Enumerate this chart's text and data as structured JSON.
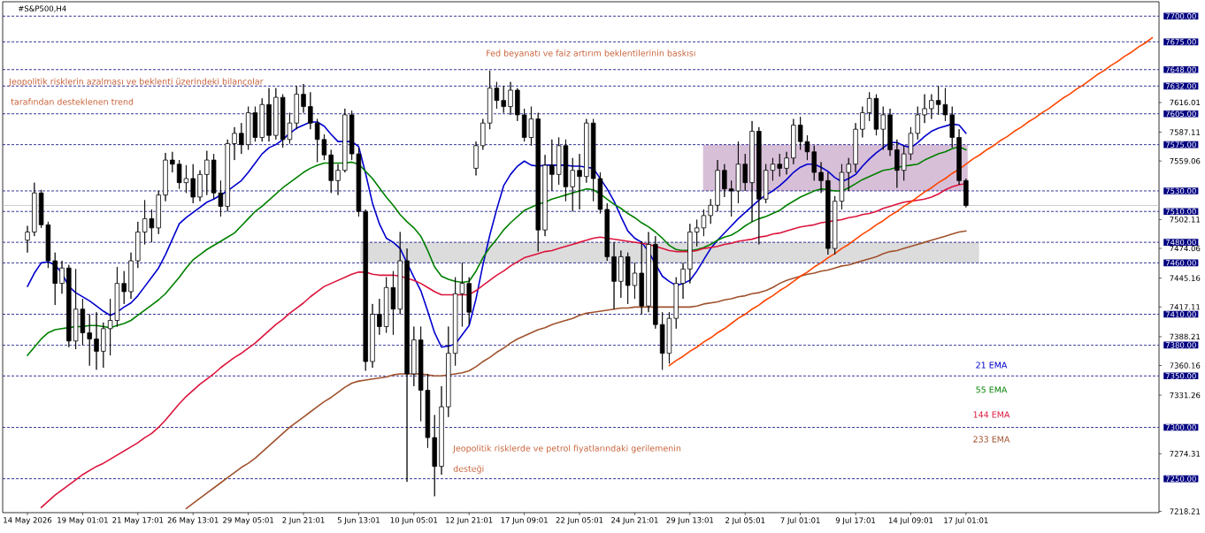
{
  "chart_data": {
    "type": "candlestick",
    "title": "#S&P500,H4",
    "categories": [
      "14 May 2026",
      null,
      null,
      null,
      null,
      null,
      null,
      null,
      "19 May 01:01",
      null,
      null,
      null,
      null,
      null,
      null,
      null,
      "21 May 17:01",
      null,
      null,
      null,
      null,
      null,
      null,
      null,
      "26 May 13:01",
      null,
      null,
      null,
      null,
      null,
      null,
      null,
      "29 May 05:01",
      null,
      null,
      null,
      null,
      null,
      null,
      null,
      "2 Jun 21:01",
      null,
      null,
      null,
      null,
      null,
      null,
      null,
      "5 Jun 13:01",
      null,
      null,
      null,
      null,
      null,
      null,
      null,
      "10 Jun 05:01",
      null,
      null,
      null,
      null,
      null,
      null,
      null,
      "12 Jun 21:01",
      null,
      null,
      null,
      null,
      null,
      null,
      null,
      "17 Jun 09:01",
      null,
      null,
      null,
      null,
      null,
      null,
      null,
      "22 Jun 05:01",
      null,
      null,
      null,
      null,
      null,
      null,
      null,
      "24 Jun 21:01",
      null,
      null,
      null,
      null,
      null,
      null,
      null,
      "29 Jun 13:01",
      null,
      null,
      null,
      null,
      null,
      null,
      null,
      "2 Jul 05:01",
      null,
      null,
      null,
      null,
      null,
      null,
      null,
      "7 Jul 01:01",
      null,
      null,
      null,
      null,
      null,
      null,
      null,
      "9 Jul 17:01",
      null,
      null,
      null,
      null,
      null,
      null,
      null,
      "14 Jul 09:01",
      null,
      null,
      null,
      null,
      null,
      null,
      null,
      "17 Jul 01:01",
      null,
      null,
      null,
      null,
      null,
      null,
      null,
      null,
      null,
      null,
      null,
      null,
      null,
      null,
      null,
      null,
      null,
      null,
      null,
      null,
      null,
      null,
      null,
      null,
      null,
      null,
      null
    ],
    "ohlc": [
      [
        7482,
        7496,
        7470,
        7490
      ],
      [
        7490,
        7538,
        7486,
        7528
      ],
      [
        7528,
        7531,
        7494,
        7497
      ],
      [
        7497,
        7500,
        7455,
        7462
      ],
      [
        7462,
        7470,
        7419,
        7440
      ],
      [
        7440,
        7462,
        7430,
        7455
      ],
      [
        7455,
        7458,
        7378,
        7384
      ],
      [
        7384,
        7454,
        7376,
        7415
      ],
      [
        7415,
        7425,
        7380,
        7392
      ],
      [
        7392,
        7410,
        7360,
        7386
      ],
      [
        7386,
        7412,
        7356,
        7374
      ],
      [
        7374,
        7402,
        7358,
        7396
      ],
      [
        7396,
        7425,
        7370,
        7404
      ],
      [
        7404,
        7456,
        7398,
        7440
      ],
      [
        7440,
        7452,
        7420,
        7432
      ],
      [
        7432,
        7470,
        7425,
        7462
      ],
      [
        7462,
        7500,
        7455,
        7490
      ],
      [
        7490,
        7521,
        7478,
        7503
      ],
      [
        7503,
        7512,
        7480,
        7494
      ],
      [
        7494,
        7530,
        7488,
        7526
      ],
      [
        7526,
        7567,
        7520,
        7560
      ],
      [
        7560,
        7568,
        7548,
        7556
      ],
      [
        7556,
        7560,
        7532,
        7538
      ],
      [
        7538,
        7555,
        7528,
        7542
      ],
      [
        7542,
        7556,
        7518,
        7524
      ],
      [
        7524,
        7550,
        7520,
        7546
      ],
      [
        7546,
        7569,
        7526,
        7560
      ],
      [
        7560,
        7566,
        7522,
        7528
      ],
      [
        7528,
        7540,
        7505,
        7515
      ],
      [
        7515,
        7580,
        7510,
        7576
      ],
      [
        7576,
        7592,
        7560,
        7586
      ],
      [
        7586,
        7596,
        7566,
        7575
      ],
      [
        7575,
        7612,
        7570,
        7606
      ],
      [
        7606,
        7612,
        7578,
        7582
      ],
      [
        7582,
        7620,
        7578,
        7614
      ],
      [
        7614,
        7630,
        7578,
        7584
      ],
      [
        7584,
        7630,
        7580,
        7621
      ],
      [
        7621,
        7624,
        7572,
        7580
      ],
      [
        7580,
        7606,
        7576,
        7596
      ],
      [
        7596,
        7632,
        7590,
        7624
      ],
      [
        7624,
        7634,
        7606,
        7612
      ],
      [
        7612,
        7626,
        7590,
        7596
      ],
      [
        7596,
        7600,
        7558,
        7580
      ],
      [
        7580,
        7585,
        7560,
        7565
      ],
      [
        7565,
        7570,
        7528,
        7540
      ],
      [
        7540,
        7556,
        7526,
        7550
      ],
      [
        7550,
        7610,
        7548,
        7604
      ],
      [
        7604,
        7608,
        7560,
        7566
      ],
      [
        7566,
        7572,
        7505,
        7510
      ],
      [
        7510,
        7512,
        7355,
        7364
      ],
      [
        7364,
        7420,
        7358,
        7410
      ],
      [
        7410,
        7425,
        7390,
        7398
      ],
      [
        7398,
        7446,
        7392,
        7436
      ],
      [
        7436,
        7452,
        7390,
        7415
      ],
      [
        7415,
        7490,
        7410,
        7462
      ],
      [
        7462,
        7474,
        7247,
        7352
      ],
      [
        7352,
        7398,
        7340,
        7385
      ],
      [
        7385,
        7398,
        7306,
        7336
      ],
      [
        7336,
        7352,
        7280,
        7290
      ],
      [
        7290,
        7312,
        7233,
        7262
      ],
      [
        7262,
        7340,
        7254,
        7320
      ],
      [
        7320,
        7398,
        7310,
        7372
      ],
      [
        7372,
        7446,
        7360,
        7430
      ],
      [
        7430,
        7460,
        7398,
        7440
      ],
      [
        7440,
        7446,
        7400,
        7412
      ],
      [
        7552,
        7578,
        7545,
        7574
      ],
      [
        7574,
        7600,
        7570,
        7596
      ],
      [
        7596,
        7647,
        7590,
        7630
      ],
      [
        7630,
        7636,
        7610,
        7618
      ],
      [
        7618,
        7632,
        7606,
        7612
      ],
      [
        7612,
        7636,
        7604,
        7628
      ],
      [
        7628,
        7630,
        7598,
        7604
      ],
      [
        7604,
        7610,
        7578,
        7582
      ],
      [
        7582,
        7612,
        7574,
        7600
      ],
      [
        7600,
        7606,
        7471,
        7492
      ],
      [
        7492,
        7565,
        7486,
        7555
      ],
      [
        7555,
        7580,
        7530,
        7546
      ],
      [
        7546,
        7582,
        7536,
        7574
      ],
      [
        7574,
        7580,
        7520,
        7534
      ],
      [
        7534,
        7562,
        7510,
        7550
      ],
      [
        7550,
        7566,
        7512,
        7544
      ],
      [
        7544,
        7600,
        7538,
        7596
      ],
      [
        7596,
        7600,
        7520,
        7542
      ],
      [
        7542,
        7548,
        7508,
        7512
      ],
      [
        7512,
        7518,
        7462,
        7466
      ],
      [
        7466,
        7480,
        7415,
        7442
      ],
      [
        7442,
        7472,
        7426,
        7466
      ],
      [
        7466,
        7470,
        7420,
        7438
      ],
      [
        7438,
        7460,
        7425,
        7450
      ],
      [
        7450,
        7481,
        7410,
        7418
      ],
      [
        7418,
        7490,
        7412,
        7478
      ],
      [
        7478,
        7486,
        7396,
        7400
      ],
      [
        7400,
        7412,
        7356,
        7372
      ],
      [
        7372,
        7412,
        7362,
        7406
      ],
      [
        7406,
        7446,
        7396,
        7440
      ],
      [
        7440,
        7460,
        7425,
        7454
      ],
      [
        7454,
        7498,
        7440,
        7490
      ],
      [
        7490,
        7502,
        7476,
        7494
      ],
      [
        7494,
        7512,
        7486,
        7506
      ],
      [
        7506,
        7522,
        7498,
        7516
      ],
      [
        7516,
        7560,
        7510,
        7550
      ],
      [
        7550,
        7556,
        7524,
        7532
      ],
      [
        7532,
        7540,
        7505,
        7530
      ],
      [
        7530,
        7578,
        7518,
        7556
      ],
      [
        7556,
        7566,
        7530,
        7538
      ],
      [
        7538,
        7598,
        7500,
        7588
      ],
      [
        7588,
        7592,
        7478,
        7522
      ],
      [
        7522,
        7556,
        7518,
        7550
      ],
      [
        7550,
        7562,
        7540,
        7556
      ],
      [
        7556,
        7566,
        7544,
        7552
      ],
      [
        7552,
        7568,
        7546,
        7562
      ],
      [
        7562,
        7600,
        7556,
        7594
      ],
      [
        7594,
        7602,
        7570,
        7578
      ],
      [
        7578,
        7584,
        7560,
        7568
      ],
      [
        7568,
        7574,
        7540,
        7548
      ],
      [
        7548,
        7558,
        7528,
        7540
      ],
      [
        7540,
        7548,
        7468,
        7474
      ],
      [
        7474,
        7525,
        7468,
        7520
      ],
      [
        7520,
        7556,
        7512,
        7548
      ],
      [
        7548,
        7562,
        7530,
        7556
      ],
      [
        7556,
        7596,
        7548,
        7590
      ],
      [
        7590,
        7612,
        7582,
        7606
      ],
      [
        7606,
        7626,
        7598,
        7620
      ],
      [
        7620,
        7624,
        7584,
        7590
      ],
      [
        7590,
        7612,
        7570,
        7604
      ],
      [
        7604,
        7610,
        7564,
        7570
      ],
      [
        7570,
        7580,
        7533,
        7550
      ],
      [
        7550,
        7574,
        7540,
        7566
      ],
      [
        7566,
        7592,
        7560,
        7586
      ],
      [
        7586,
        7612,
        7580,
        7604
      ],
      [
        7604,
        7624,
        7596,
        7610
      ],
      [
        7610,
        7624,
        7600,
        7618
      ],
      [
        7618,
        7632,
        7604,
        7614
      ],
      [
        7614,
        7630,
        7598,
        7604
      ],
      [
        7604,
        7612,
        7572,
        7582
      ],
      [
        7582,
        7590,
        7536,
        7540
      ],
      [
        7540,
        7542,
        7514,
        7515.74
      ],
      null,
      null,
      null,
      null,
      null,
      null,
      null,
      null,
      null,
      null,
      null,
      null,
      null,
      null,
      null,
      null,
      null,
      null,
      null,
      null,
      null,
      null,
      null,
      null,
      null,
      null,
      null
    ],
    "series": [
      {
        "name": "21 EMA",
        "type": "line",
        "color": "#0000cd",
        "values": [
          7437,
          7450,
          7460,
          7461,
          7458,
          7450,
          7437,
          7431,
          7427,
          7423,
          7418,
          7413,
          7409,
          7412,
          7417,
          7421,
          7428,
          7437,
          7446,
          7455,
          7468,
          7483,
          7498,
          7504,
          7509,
          7514,
          7519,
          7522,
          7526,
          7530,
          7535,
          7540,
          7548,
          7557,
          7566,
          7572,
          7575,
          7580,
          7586,
          7591,
          7594,
          7597,
          7597,
          7593,
          7585,
          7578,
          7578,
          7578,
          7573,
          7547,
          7518,
          7498,
          7484,
          7480,
          7474,
          7460,
          7446,
          7433,
          7413,
          7392,
          7378,
          7379,
          7381,
          7390,
          7399,
          7425,
          7458,
          7487,
          7512,
          7535,
          7546,
          7554,
          7559,
          7555,
          7554,
          7555,
          7555,
          7555,
          7555,
          7554,
          7554,
          7553,
          7552,
          7542,
          7532,
          7520,
          7505,
          7491,
          7484,
          7480,
          7471,
          7459,
          7447,
          7442,
          7438,
          7440,
          7443,
          7452,
          7463,
          7474,
          7482,
          7489,
          7496,
          7503,
          7509,
          7515,
          7521,
          7526,
          7530,
          7535,
          7541,
          7548,
          7553,
          7556,
          7556,
          7553,
          7549,
          7543,
          7539,
          7542,
          7546,
          7554,
          7561,
          7567,
          7572,
          7577,
          7577,
          7574,
          7572,
          7577,
          7583,
          7588,
          7591,
          7593,
          7595,
          7594,
          7586,
          null,
          null,
          null,
          null,
          null,
          null,
          null,
          null,
          null,
          null,
          null,
          null,
          null,
          null,
          null,
          null,
          null,
          null,
          null,
          null,
          null,
          null,
          null,
          null,
          null,
          null,
          null
        ]
      },
      {
        "name": "55 EMA",
        "type": "line",
        "color": "#008000",
        "values": [
          7370,
          7378,
          7386,
          7392,
          7395,
          7396,
          7397,
          7398,
          7398,
          7399,
          7399,
          7398,
          7397,
          7399,
          7401,
          7404,
          7409,
          7414,
          7419,
          7424,
          7430,
          7438,
          7446,
          7455,
          7463,
          7468,
          7473,
          7477,
          7481,
          7485,
          7489,
          7496,
          7503,
          7510,
          7515,
          7521,
          7527,
          7533,
          7538,
          7543,
          7548,
          7552,
          7555,
          7557,
          7557,
          7557,
          7557,
          7558,
          7556,
          7549,
          7542,
          7533,
          7524,
          7516,
          7507,
          7500,
          7494,
          7486,
          7472,
          7456,
          7447,
          7444,
          7442,
          7441,
          7442,
          7452,
          7465,
          7475,
          7483,
          7492,
          7499,
          7505,
          7511,
          7514,
          7517,
          7519,
          7522,
          7524,
          7526,
          7528,
          7530,
          7532,
          7531,
          7527,
          7522,
          7517,
          7513,
          7508,
          7504,
          7499,
          7495,
          7490,
          7484,
          7477,
          7473,
          7472,
          7472,
          7473,
          7475,
          7478,
          7482,
          7485,
          7487,
          7491,
          7496,
          7500,
          7503,
          7505,
          7508,
          7511,
          7516,
          7520,
          7524,
          7527,
          7530,
          7532,
          7531,
          7530,
          7530,
          7533,
          7537,
          7541,
          7544,
          7547,
          7550,
          7551,
          7553,
          7554,
          7555,
          7556,
          7560,
          7563,
          7566,
          7568,
          7571,
          7573,
          7570,
          null,
          null,
          null,
          null,
          null,
          null,
          null,
          null,
          null,
          null,
          null,
          null,
          null,
          null,
          null,
          null,
          null,
          null,
          null,
          null,
          null,
          null,
          null,
          null,
          null,
          null,
          null
        ]
      },
      {
        "name": "144 EMA",
        "type": "line",
        "color": "#dc143c",
        "values": [
          null,
          null,
          7222,
          7228,
          7234,
          7239,
          7244,
          7249,
          7254,
          7258,
          7262,
          7265,
          7269,
          7273,
          7277,
          7281,
          7285,
          7290,
          7294,
          7300,
          7307,
          7315,
          7323,
          7330,
          7336,
          7342,
          7347,
          7352,
          7358,
          7363,
          7368,
          7372,
          7377,
          7382,
          7388,
          7394,
          7400,
          7405,
          7411,
          7416,
          7421,
          7427,
          7432,
          7437,
          7440,
          7443,
          7446,
          7449,
          7451,
          7451,
          7449,
          7448,
          7448,
          7448,
          7447,
          7445,
          7443,
          7440,
          7436,
          7432,
          7429,
          7429,
          7429,
          7429,
          7429,
          7433,
          7438,
          7443,
          7448,
          7452,
          7457,
          7461,
          7465,
          7467,
          7469,
          7471,
          7472,
          7474,
          7476,
          7478,
          7480,
          7482,
          7484,
          7485,
          7484,
          7483,
          7482,
          7481,
          7480,
          7479,
          7478,
          7476,
          7474,
          7472,
          7471,
          7471,
          7471,
          7472,
          7474,
          7475,
          7476,
          7478,
          7479,
          7481,
          7482,
          7483,
          7485,
          7486,
          7488,
          7489,
          7491,
          7493,
          7495,
          7496,
          7497,
          7499,
          7500,
          7501,
          7502,
          7504,
          7505,
          7507,
          7508,
          7510,
          7513,
          7515,
          7517,
          7519,
          7520,
          7521,
          7522,
          7524,
          7527,
          7531,
          7534,
          7536,
          7537,
          null,
          null,
          null,
          null,
          null,
          null,
          null,
          null,
          null,
          null,
          null,
          null,
          null,
          null,
          null,
          null,
          null,
          null,
          null,
          null,
          null,
          null,
          null,
          null,
          null,
          null,
          null
        ]
      },
      {
        "name": "233 EMA",
        "type": "line",
        "color": "#a0522d",
        "values": [
          null,
          null,
          null,
          null,
          null,
          null,
          null,
          null,
          null,
          null,
          null,
          null,
          null,
          null,
          null,
          null,
          null,
          null,
          null,
          null,
          null,
          null,
          null,
          7221,
          7226,
          7231,
          7236,
          7241,
          7246,
          7251,
          7256,
          7261,
          7265,
          7270,
          7276,
          7282,
          7288,
          7294,
          7300,
          7305,
          7310,
          7315,
          7320,
          7325,
          7329,
          7334,
          7339,
          7343,
          7345,
          7346,
          7347,
          7348,
          7349,
          7351,
          7352,
          7352,
          7352,
          7352,
          7351,
          7350,
          7350,
          7351,
          7352,
          7353,
          7355,
          7359,
          7364,
          7368,
          7373,
          7377,
          7382,
          7386,
          7389,
          7392,
          7395,
          7397,
          7400,
          7402,
          7404,
          7406,
          7409,
          7411,
          7412,
          7413,
          7414,
          7415,
          7416,
          7416,
          7417,
          7417,
          7417,
          7417,
          7417,
          7417,
          7417,
          7417,
          7417,
          7418,
          7420,
          7421,
          7422,
          7424,
          7425,
          7427,
          7428,
          7430,
          7431,
          7433,
          7436,
          7440,
          7443,
          7445,
          7447,
          7449,
          7450,
          7452,
          7453,
          7455,
          7457,
          7458,
          7460,
          7462,
          7464,
          7466,
          7469,
          7471,
          7472,
          7474,
          7476,
          7478,
          7480,
          7482,
          7484,
          7486,
          7488,
          7490,
          7491,
          null,
          null,
          null,
          null,
          null,
          null,
          null,
          null,
          null,
          null,
          null,
          null,
          null,
          null,
          null,
          null,
          null,
          null,
          null,
          null,
          null,
          null,
          null,
          null,
          null,
          null,
          null
        ]
      },
      {
        "type": "line",
        "color": "#ff4500",
        "values": [
          null,
          null,
          null,
          null,
          null,
          null,
          null,
          null,
          null,
          null,
          null,
          null,
          null,
          null,
          null,
          null,
          null,
          null,
          null,
          null,
          null,
          null,
          null,
          null,
          null,
          null,
          null,
          null,
          null,
          null,
          null,
          null,
          null,
          null,
          null,
          null,
          null,
          null,
          null,
          null,
          null,
          null,
          null,
          null,
          null,
          null,
          null,
          null,
          null,
          null,
          null,
          null,
          null,
          null,
          null,
          null,
          null,
          null,
          null,
          null,
          null,
          null,
          null,
          null,
          null,
          null,
          null,
          null,
          null,
          null,
          null,
          null,
          null,
          null,
          null,
          null,
          null,
          null,
          null,
          null,
          null,
          null,
          null,
          null,
          null,
          null,
          null,
          null,
          null,
          null,
          null,
          null,
          null,
          7360,
          7365,
          7369,
          7374,
          7378,
          7383,
          7387,
          7392,
          7396,
          7401,
          7406,
          7410,
          7415,
          7419,
          7424,
          7428,
          7433,
          7437,
          7442,
          7447,
          7451,
          7456,
          7460,
          7465,
          7469,
          7474,
          7478,
          7483,
          7488,
          7492,
          7497,
          7501,
          7506,
          7510,
          7515,
          7519,
          7524,
          7529,
          7533,
          7538,
          7542,
          7547,
          7551,
          7556,
          7561,
          7565,
          7570,
          7574,
          7579,
          7583,
          7588,
          7592,
          7597,
          7601,
          7606,
          7610,
          7615,
          7620,
          7624,
          7629,
          7633,
          7638,
          7643,
          7647,
          7652,
          7656,
          7661,
          7665,
          7670,
          7674,
          7679
        ]
      }
    ],
    "ylim": [
      7217,
      7714
    ],
    "yticks": [
      7218.21,
      7274.31,
      7331.26,
      7360.16,
      7388.21,
      7417.11,
      7445.16,
      7474.06,
      7502.11,
      7559.06,
      7587.11,
      7616.01
    ],
    "ref_lines": [
      {
        "axis": "y",
        "value": 7700,
        "label": "7700.00",
        "line_style": "dashed"
      },
      {
        "axis": "y",
        "value": 7675,
        "label": "7675.00",
        "line_style": "dashed"
      },
      {
        "axis": "y",
        "value": 7648,
        "label": "7648.00",
        "line_style": "dashed"
      },
      {
        "axis": "y",
        "value": 7632,
        "label": "7632.00",
        "line_style": "dashed"
      },
      {
        "axis": "y",
        "value": 7605,
        "label": "7605.00",
        "line_style": "dashed"
      },
      {
        "axis": "y",
        "value": 7575,
        "label": "7575.00",
        "line_style": "dashed"
      },
      {
        "axis": "y",
        "value": 7530,
        "label": "7530.00",
        "line_style": "dashed"
      },
      {
        "axis": "y",
        "value": 7515.74,
        "color": "#c0c0c0",
        "line_style": "solid"
      },
      {
        "axis": "y",
        "value": 7510,
        "label": "7510.00",
        "line_style": "dashed"
      },
      {
        "axis": "y",
        "value": 7480,
        "label": "7480.00",
        "line_style": "dashed"
      },
      {
        "axis": "y",
        "value": 7460,
        "label": "7460.00",
        "line_style": "dashed"
      },
      {
        "axis": "y",
        "value": 7410,
        "label": "7410.00",
        "line_style": "dashed"
      },
      {
        "axis": "y",
        "value": 7380,
        "label": "7380.00",
        "line_style": "dashed"
      },
      {
        "axis": "y",
        "value": 7350,
        "label": "7350.00",
        "line_style": "dashed"
      },
      {
        "axis": "y",
        "value": 7300,
        "label": "7300.00",
        "line_style": "dashed"
      },
      {
        "axis": "y",
        "value": 7250,
        "label": "7250.00",
        "line_style": "dashed"
      }
    ],
    "bands": [
      {
        "axis": "y",
        "from": 7460,
        "to": 7480,
        "color": "#dcdcdc"
      },
      {
        "axis": "y",
        "from": 7530,
        "to": 7575,
        "color": "#d8bfd8"
      }
    ],
    "annotations": [
      "Fed beyanatı ve faiz artırım beklentilerinin baskısı",
      "Jeopolitik risklerin azalması ve beklenti üzerindeki bilançolar",
      "tarafından desteklenen trend",
      "Jeopolitik risklerde ve petrol fiyatlarındaki gerilemenin",
      "desteği"
    ],
    "legend": "right"
  }
}
